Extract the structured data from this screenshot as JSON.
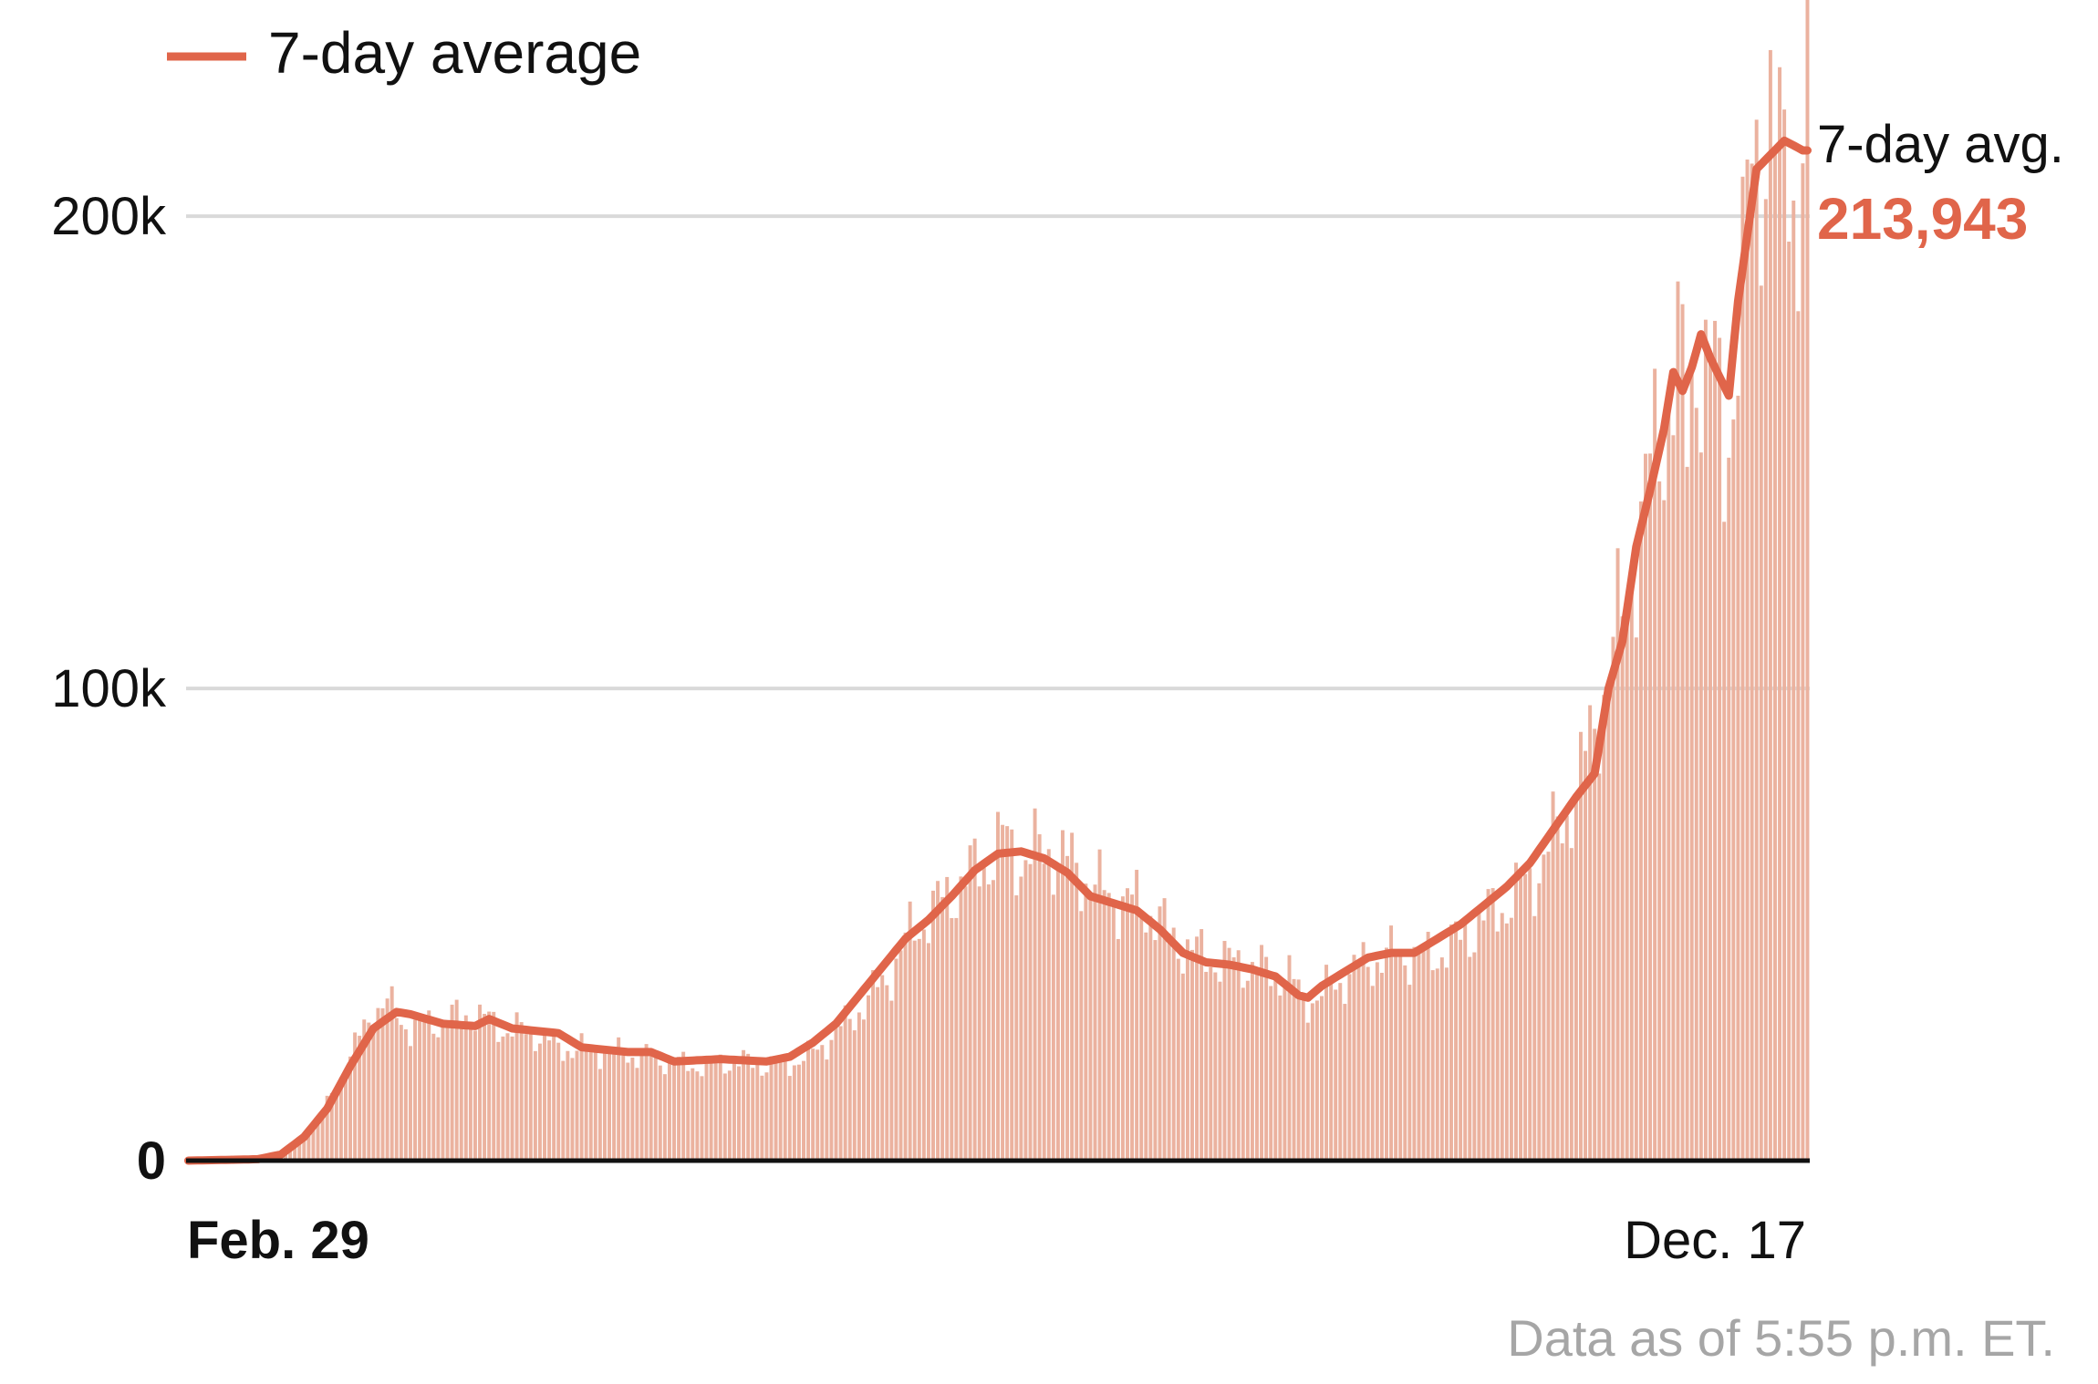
{
  "legend": {
    "label": "7-day average",
    "color": "#e0654a"
  },
  "colors": {
    "bar": "#ebb29f",
    "line": "#e0654a",
    "grid": "#d9d9d9",
    "axis": "#111111",
    "note": "#a6a6a6"
  },
  "annotation": {
    "label": "7-day avg.",
    "value": "213,943"
  },
  "note": "Data as of 5:55 p.m. ET.",
  "chart_data": {
    "type": "bar",
    "title": "",
    "xlabel": "",
    "ylabel": "",
    "ylim": [
      0,
      240000
    ],
    "grid": true,
    "legend_position": "top-left",
    "x_start_label": "Feb. 29",
    "x_end_label": "Dec. 17",
    "y_ticks": [
      {
        "value": 0,
        "label": "0"
      },
      {
        "value": 100000,
        "label": "100k"
      },
      {
        "value": 200000,
        "label": "200k"
      }
    ],
    "series": [
      {
        "name": "",
        "kind": "bar",
        "keypoints": [
          [
            0,
            0
          ],
          [
            20,
            1000
          ],
          [
            28,
            8000
          ],
          [
            33,
            18000
          ],
          [
            37,
            26000
          ],
          [
            40,
            32000
          ],
          [
            43,
            33000
          ],
          [
            48,
            28000
          ],
          [
            56,
            30000
          ],
          [
            62,
            31000
          ],
          [
            68,
            28000
          ],
          [
            75,
            27000
          ],
          [
            80,
            24000
          ],
          [
            90,
            23000
          ],
          [
            100,
            22000
          ],
          [
            108,
            20000
          ],
          [
            118,
            21000
          ],
          [
            128,
            20000
          ],
          [
            134,
            22000
          ],
          [
            140,
            27000
          ],
          [
            146,
            33000
          ],
          [
            152,
            40000
          ],
          [
            156,
            48000
          ],
          [
            160,
            52000
          ],
          [
            166,
            58000
          ],
          [
            172,
            63000
          ],
          [
            176,
            68000
          ],
          [
            180,
            64000
          ],
          [
            186,
            66000
          ],
          [
            192,
            62000
          ],
          [
            197,
            57000
          ],
          [
            203,
            55000
          ],
          [
            208,
            53000
          ],
          [
            213,
            47000
          ],
          [
            218,
            44000
          ],
          [
            223,
            42000
          ],
          [
            228,
            42000
          ],
          [
            233,
            40000
          ],
          [
            238,
            39000
          ],
          [
            241,
            34000
          ],
          [
            245,
            35000
          ],
          [
            250,
            39000
          ],
          [
            255,
            42000
          ],
          [
            262,
            44000
          ],
          [
            268,
            43000
          ],
          [
            274,
            46000
          ],
          [
            281,
            52000
          ],
          [
            287,
            56000
          ],
          [
            292,
            62000
          ],
          [
            296,
            70000
          ],
          [
            300,
            78000
          ],
          [
            304,
            92000
          ],
          [
            308,
            108000
          ],
          [
            311,
            120000
          ],
          [
            314,
            135000
          ],
          [
            317,
            150000
          ],
          [
            320,
            160000
          ],
          [
            322,
            172000
          ],
          [
            324,
            150000
          ],
          [
            326,
            175000
          ],
          [
            328,
            168000
          ],
          [
            330,
            165000
          ],
          [
            332,
            150000
          ],
          [
            334,
            165000
          ],
          [
            336,
            185000
          ],
          [
            338,
            210000
          ],
          [
            340,
            215000
          ],
          [
            342,
            225000
          ],
          [
            344,
            205000
          ],
          [
            346,
            215000
          ],
          [
            348,
            200000
          ],
          [
            350,
            238000
          ]
        ]
      },
      {
        "name": "7-day average",
        "kind": "line",
        "keypoints": [
          [
            0,
            0
          ],
          [
            15,
            300
          ],
          [
            20,
            1300
          ],
          [
            25,
            5000
          ],
          [
            30,
            11000
          ],
          [
            35,
            20000
          ],
          [
            40,
            28000
          ],
          [
            45,
            31500
          ],
          [
            48,
            31000
          ],
          [
            55,
            29000
          ],
          [
            62,
            28500
          ],
          [
            65,
            30000
          ],
          [
            70,
            28000
          ],
          [
            80,
            27000
          ],
          [
            85,
            24000
          ],
          [
            95,
            23000
          ],
          [
            100,
            23000
          ],
          [
            105,
            21000
          ],
          [
            115,
            21500
          ],
          [
            125,
            21000
          ],
          [
            130,
            22000
          ],
          [
            135,
            25000
          ],
          [
            140,
            29000
          ],
          [
            145,
            35000
          ],
          [
            150,
            41000
          ],
          [
            155,
            47000
          ],
          [
            160,
            51000
          ],
          [
            165,
            56000
          ],
          [
            170,
            61500
          ],
          [
            175,
            65000
          ],
          [
            180,
            65500
          ],
          [
            185,
            64000
          ],
          [
            190,
            61000
          ],
          [
            195,
            56000
          ],
          [
            200,
            54500
          ],
          [
            205,
            53000
          ],
          [
            210,
            49000
          ],
          [
            215,
            44000
          ],
          [
            220,
            42000
          ],
          [
            225,
            41500
          ],
          [
            230,
            40500
          ],
          [
            235,
            39000
          ],
          [
            240,
            35000
          ],
          [
            242,
            34500
          ],
          [
            245,
            37000
          ],
          [
            250,
            40000
          ],
          [
            255,
            43000
          ],
          [
            260,
            44000
          ],
          [
            265,
            44000
          ],
          [
            270,
            47000
          ],
          [
            275,
            50000
          ],
          [
            280,
            54000
          ],
          [
            285,
            58000
          ],
          [
            290,
            63000
          ],
          [
            295,
            70000
          ],
          [
            300,
            77000
          ],
          [
            304,
            82000
          ],
          [
            307,
            100000
          ],
          [
            310,
            110000
          ],
          [
            313,
            130000
          ],
          [
            316,
            142000
          ],
          [
            319,
            155000
          ],
          [
            321,
            167000
          ],
          [
            323,
            163000
          ],
          [
            325,
            168000
          ],
          [
            327,
            175000
          ],
          [
            329,
            170000
          ],
          [
            331,
            166000
          ],
          [
            333,
            162000
          ],
          [
            335,
            182000
          ],
          [
            337,
            196000
          ],
          [
            339,
            210000
          ],
          [
            341,
            212000
          ],
          [
            343,
            214000
          ],
          [
            345,
            216000
          ],
          [
            347,
            215000
          ],
          [
            349,
            213943
          ]
        ]
      }
    ]
  }
}
